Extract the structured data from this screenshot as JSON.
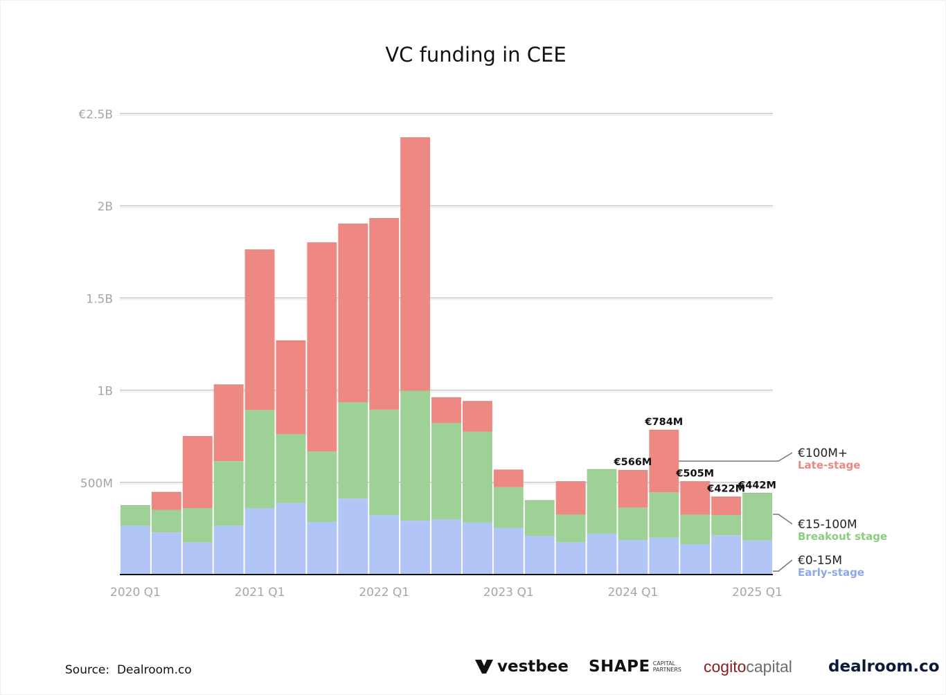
{
  "chart_data": {
    "type": "bar",
    "stacked": true,
    "title": "VC funding in CEE",
    "xlabel": "",
    "ylabel": "",
    "ylim": [
      0,
      2500
    ],
    "y_ticks": [
      {
        "value": 500,
        "label": "500M"
      },
      {
        "value": 1000,
        "label": "1B"
      },
      {
        "value": 1500,
        "label": "1.5B"
      },
      {
        "value": 2000,
        "label": "2B"
      },
      {
        "value": 2500,
        "label": "€2.5B"
      }
    ],
    "x_tick_labels": [
      "2020 Q1",
      "2021 Q1",
      "2022 Q1",
      "2023 Q1",
      "2024 Q1",
      "2025 Q1"
    ],
    "x_tick_every": 4,
    "categories": [
      "2020 Q1",
      "2020 Q2",
      "2020 Q3",
      "2020 Q4",
      "2021 Q1",
      "2021 Q2",
      "2021 Q3",
      "2021 Q4",
      "2022 Q1",
      "2022 Q2",
      "2022 Q3",
      "2022 Q4",
      "2023 Q1",
      "2023 Q2",
      "2023 Q3",
      "2023 Q4",
      "2024 Q1",
      "2024 Q2",
      "2024 Q3",
      "2024 Q4",
      "2025 Q1"
    ],
    "grid": true,
    "legend_placement": "right",
    "series": [
      {
        "name": "€0-15M",
        "sublabel": "Early-stage",
        "color": "#b1c6f6",
        "label_color": "#8aa8ec",
        "values": [
          265,
          228,
          175,
          265,
          360,
          388,
          285,
          412,
          322,
          292,
          300,
          282,
          253,
          210,
          175,
          222,
          188,
          200,
          165,
          213,
          185
        ]
      },
      {
        "name": "€15-100M",
        "sublabel": "Breakout stage",
        "color": "#9dd195",
        "label_color": "#8ccc80",
        "values": [
          110,
          122,
          185,
          350,
          532,
          373,
          382,
          522,
          572,
          705,
          522,
          493,
          222,
          192,
          150,
          348,
          175,
          246,
          160,
          110,
          257
        ]
      },
      {
        "name": "€100M+",
        "sublabel": "Late-stage",
        "color": "#ee8882",
        "label_color": "#ea8884",
        "values": [
          0,
          97,
          390,
          415,
          870,
          508,
          1133,
          968,
          1038,
          1373,
          138,
          165,
          93,
          0,
          180,
          0,
          203,
          338,
          180,
          99,
          0
        ]
      }
    ],
    "annotations": [
      {
        "index": 16,
        "label": "€566M"
      },
      {
        "index": 17,
        "label": "€784M"
      },
      {
        "index": 18,
        "label": "€505M"
      },
      {
        "index": 19,
        "label": "€422M"
      },
      {
        "index": 20,
        "label": "€442M"
      }
    ]
  },
  "footer": {
    "source_label": "Source:",
    "source_value": "Dealroom.co"
  },
  "logos": {
    "vestbee": "vestbee",
    "shape": "SHAPE",
    "shape_small_1": "CAPITAL",
    "shape_small_2": "PARTNERS",
    "cogito_1": "cogito",
    "cogito_2": "capital",
    "dealroom": "dealroom.co"
  }
}
